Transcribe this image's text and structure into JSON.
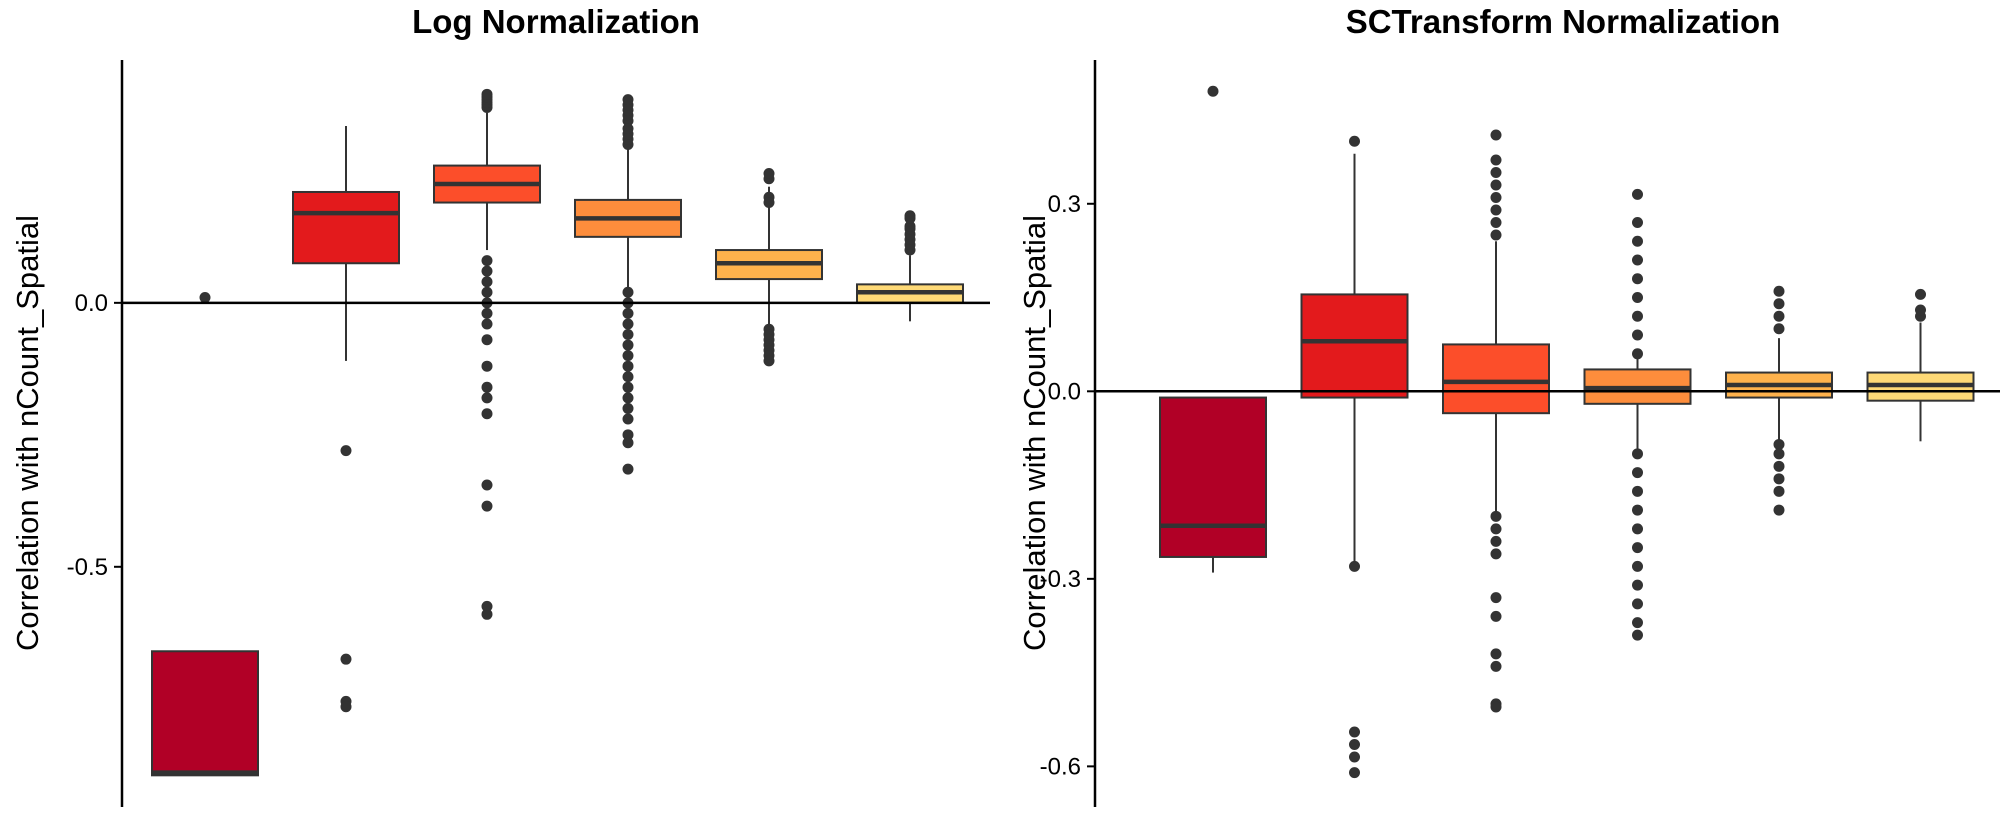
{
  "chart_data": [
    {
      "type": "box",
      "title": "Log Normalization",
      "xlabel": "",
      "ylabel": "Correlation with nCount_Spatial",
      "ylim": [
        -0.955,
        0.46
      ],
      "yticks": [
        {
          "value": 0.0,
          "label": "0.0"
        },
        {
          "value": -0.5,
          "label": "-0.5"
        }
      ],
      "hline": 0.0,
      "boxes": [
        {
          "color": "#B10026",
          "q1": -0.895,
          "median": -0.89,
          "q3": -0.66,
          "lo": null,
          "hi": null,
          "outliers": [
            0.01
          ]
        },
        {
          "color": "#E31A1C",
          "q1": 0.075,
          "median": 0.17,
          "q3": 0.21,
          "lo": -0.11,
          "hi": 0.335,
          "outliers": [
            -0.28,
            -0.675,
            -0.755,
            -0.765
          ]
        },
        {
          "color": "#FC4E2A",
          "q1": 0.19,
          "median": 0.225,
          "q3": 0.26,
          "lo": 0.1,
          "hi": 0.36,
          "outliers": [
            0.37,
            0.375,
            0.38,
            0.385,
            0.39,
            0.395,
            0.08,
            0.06,
            0.04,
            0.02,
            0.0,
            -0.02,
            -0.04,
            -0.07,
            -0.12,
            -0.16,
            -0.18,
            -0.21,
            -0.345,
            -0.385,
            -0.575,
            -0.59
          ]
        },
        {
          "color": "#FD8D3C",
          "q1": 0.125,
          "median": 0.16,
          "q3": 0.195,
          "lo": 0.02,
          "hi": 0.34,
          "outliers": [
            0.345,
            0.355,
            0.365,
            0.375,
            0.385,
            0.3,
            0.31,
            0.32,
            0.33,
            0.02,
            0.0,
            -0.02,
            -0.04,
            -0.06,
            -0.08,
            -0.1,
            -0.12,
            -0.14,
            -0.16,
            -0.18,
            -0.2,
            -0.22,
            -0.25,
            -0.265,
            -0.315
          ]
        },
        {
          "color": "#FEB24C",
          "q1": 0.045,
          "median": 0.075,
          "q3": 0.1,
          "lo": -0.05,
          "hi": 0.22,
          "outliers": [
            0.235,
            0.245,
            0.2,
            0.19,
            -0.05,
            -0.06,
            -0.07,
            -0.08,
            -0.09,
            -0.1,
            -0.11
          ]
        },
        {
          "color": "#FED976",
          "q1": 0.0,
          "median": 0.02,
          "q3": 0.035,
          "lo": -0.035,
          "hi": 0.09,
          "outliers": [
            0.1,
            0.11,
            0.12,
            0.13,
            0.14,
            0.145,
            0.16,
            0.165
          ]
        }
      ]
    },
    {
      "type": "box",
      "title": "SCTransform Normalization",
      "xlabel": "",
      "ylabel": "Correlation with nCount_Spatial",
      "ylim": [
        -0.665,
        0.53
      ],
      "yticks": [
        {
          "value": 0.3,
          "label": "0.3"
        },
        {
          "value": 0.0,
          "label": "0.0"
        },
        {
          "value": -0.3,
          "label": "-0.3"
        },
        {
          "value": -0.6,
          "label": "-0.6"
        }
      ],
      "hline": 0.0,
      "boxes": [
        {
          "color": "#B10026",
          "q1": -0.265,
          "median": -0.215,
          "q3": -0.01,
          "lo": -0.29,
          "hi": null,
          "outliers": [
            0.48
          ]
        },
        {
          "color": "#E31A1C",
          "q1": -0.01,
          "median": 0.08,
          "q3": 0.155,
          "lo": -0.275,
          "hi": 0.38,
          "outliers": [
            0.4,
            -0.28,
            -0.545,
            -0.565,
            -0.585,
            -0.61
          ]
        },
        {
          "color": "#FC4E2A",
          "q1": -0.035,
          "median": 0.015,
          "q3": 0.075,
          "lo": -0.2,
          "hi": 0.24,
          "outliers": [
            0.25,
            0.27,
            0.29,
            0.31,
            0.33,
            0.35,
            0.37,
            0.41,
            -0.2,
            -0.22,
            -0.24,
            -0.26,
            -0.33,
            -0.36,
            -0.42,
            -0.44,
            -0.5,
            -0.505
          ]
        },
        {
          "color": "#FD8D3C",
          "q1": -0.02,
          "median": 0.005,
          "q3": 0.035,
          "lo": -0.1,
          "hi": 0.06,
          "outliers": [
            0.06,
            0.09,
            0.12,
            0.15,
            0.18,
            0.21,
            0.24,
            0.27,
            0.315,
            -0.1,
            -0.13,
            -0.16,
            -0.19,
            -0.22,
            -0.25,
            -0.28,
            -0.31,
            -0.34,
            -0.37,
            -0.39
          ]
        },
        {
          "color": "#FEB24C",
          "q1": -0.01,
          "median": 0.01,
          "q3": 0.03,
          "lo": -0.08,
          "hi": 0.085,
          "outliers": [
            0.1,
            0.12,
            0.14,
            0.16,
            -0.085,
            -0.1,
            -0.12,
            -0.14,
            -0.16,
            -0.19
          ]
        },
        {
          "color": "#FED976",
          "q1": -0.015,
          "median": 0.01,
          "q3": 0.03,
          "lo": -0.08,
          "hi": 0.11,
          "outliers": [
            0.12,
            0.13,
            0.155
          ]
        }
      ]
    }
  ]
}
